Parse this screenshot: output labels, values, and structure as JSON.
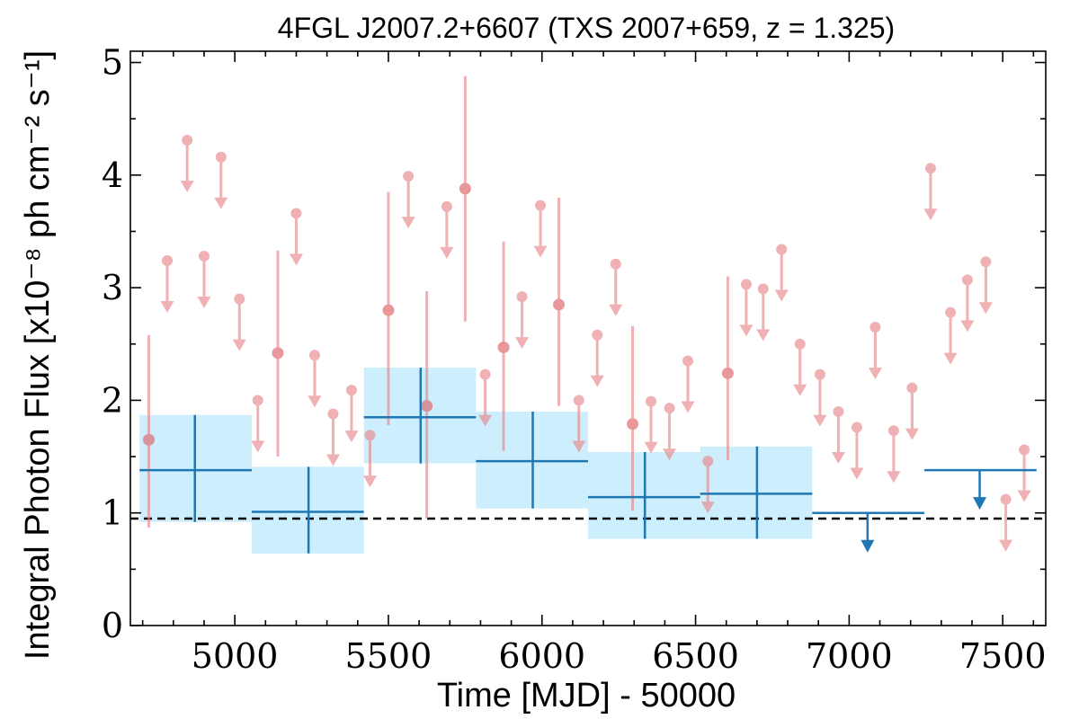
{
  "chart_data": {
    "type": "scatter",
    "title": "4FGL J2007.2+6607 (TXS 2007+659, z = 1.325)",
    "xlabel": "Time [MJD] - 50000",
    "ylabel": "Integral Photon Flux [x10⁻⁸ ph cm⁻² s⁻¹]",
    "xlim": [
      4660,
      7640
    ],
    "ylim": [
      0,
      5.1
    ],
    "xticks": [
      5000,
      5500,
      6000,
      6500,
      7000,
      7500
    ],
    "xtick_labels": [
      "5000",
      "5500",
      "6000",
      "6500",
      "7000",
      "7500"
    ],
    "yticks": [
      0,
      1,
      2,
      3,
      4,
      5
    ],
    "ytick_labels": [
      "0",
      "1",
      "2",
      "3",
      "4",
      "5"
    ],
    "grid": false,
    "reference_line": {
      "y": 0.95,
      "style": "dashed",
      "color": "#000000"
    },
    "colors": {
      "short_bins": "#e8888c",
      "long_bins": "#1f77b4",
      "long_band": "#cdeefc"
    },
    "series": [
      {
        "style": "short-bin detections",
        "points": [
          {
            "x": 4720,
            "y": 1.65,
            "ylo": 0.87,
            "yhi": 2.58
          },
          {
            "x": 5140,
            "y": 2.42,
            "ylo": 1.5,
            "yhi": 3.33
          },
          {
            "x": 5500,
            "y": 2.8,
            "ylo": 1.78,
            "yhi": 3.85
          },
          {
            "x": 5625,
            "y": 1.95,
            "ylo": 0.95,
            "yhi": 2.97
          },
          {
            "x": 5750,
            "y": 3.88,
            "ylo": 2.7,
            "yhi": 4.88
          },
          {
            "x": 5875,
            "y": 2.47,
            "ylo": 1.55,
            "yhi": 3.41
          },
          {
            "x": 6055,
            "y": 2.85,
            "ylo": 1.95,
            "yhi": 3.8
          },
          {
            "x": 6295,
            "y": 1.79,
            "ylo": 1.02,
            "yhi": 2.66
          },
          {
            "x": 6605,
            "y": 2.24,
            "ylo": 1.47,
            "yhi": 3.1
          }
        ]
      },
      {
        "style": "short-bin upper limits",
        "points": [
          {
            "x": 4780,
            "y": 3.24
          },
          {
            "x": 4845,
            "y": 4.31
          },
          {
            "x": 4900,
            "y": 3.28
          },
          {
            "x": 4955,
            "y": 4.16
          },
          {
            "x": 5015,
            "y": 2.9
          },
          {
            "x": 5075,
            "y": 2.0
          },
          {
            "x": 5200,
            "y": 3.66
          },
          {
            "x": 5260,
            "y": 2.4
          },
          {
            "x": 5320,
            "y": 1.88
          },
          {
            "x": 5380,
            "y": 2.09
          },
          {
            "x": 5440,
            "y": 1.69
          },
          {
            "x": 5565,
            "y": 3.99
          },
          {
            "x": 5690,
            "y": 3.72
          },
          {
            "x": 5815,
            "y": 2.23
          },
          {
            "x": 5935,
            "y": 2.92
          },
          {
            "x": 5995,
            "y": 3.73
          },
          {
            "x": 6120,
            "y": 2.0
          },
          {
            "x": 6180,
            "y": 2.58
          },
          {
            "x": 6240,
            "y": 3.21
          },
          {
            "x": 6355,
            "y": 1.99
          },
          {
            "x": 6415,
            "y": 1.93
          },
          {
            "x": 6475,
            "y": 2.35
          },
          {
            "x": 6540,
            "y": 1.46
          },
          {
            "x": 6665,
            "y": 3.03
          },
          {
            "x": 6720,
            "y": 2.99
          },
          {
            "x": 6780,
            "y": 3.34
          },
          {
            "x": 6840,
            "y": 2.5
          },
          {
            "x": 6905,
            "y": 2.23
          },
          {
            "x": 6965,
            "y": 1.9
          },
          {
            "x": 7025,
            "y": 1.76
          },
          {
            "x": 7085,
            "y": 2.65
          },
          {
            "x": 7145,
            "y": 1.73
          },
          {
            "x": 7205,
            "y": 2.11
          },
          {
            "x": 7265,
            "y": 4.06
          },
          {
            "x": 7330,
            "y": 2.78
          },
          {
            "x": 7385,
            "y": 3.07
          },
          {
            "x": 7445,
            "y": 3.23
          },
          {
            "x": 7510,
            "y": 1.12
          },
          {
            "x": 7570,
            "y": 1.56
          }
        ]
      },
      {
        "style": "long-bin detections",
        "bins": [
          {
            "x0": 4690,
            "x1": 5055,
            "xc": 4870,
            "y": 1.38,
            "ylo": 0.92,
            "yhi": 1.87
          },
          {
            "x0": 5055,
            "x1": 5420,
            "xc": 5240,
            "y": 1.01,
            "ylo": 0.64,
            "yhi": 1.41
          },
          {
            "x0": 5420,
            "x1": 5785,
            "xc": 5605,
            "y": 1.85,
            "ylo": 1.44,
            "yhi": 2.29
          },
          {
            "x0": 5785,
            "x1": 6150,
            "xc": 5970,
            "y": 1.46,
            "ylo": 1.04,
            "yhi": 1.9
          },
          {
            "x0": 6150,
            "x1": 6515,
            "xc": 6335,
            "y": 1.14,
            "ylo": 0.77,
            "yhi": 1.54
          },
          {
            "x0": 6515,
            "x1": 6880,
            "xc": 6700,
            "y": 1.17,
            "ylo": 0.77,
            "yhi": 1.59
          }
        ]
      },
      {
        "style": "long-bin upper limits",
        "bins": [
          {
            "x0": 6880,
            "x1": 7245,
            "xc": 7060,
            "y": 1.0
          },
          {
            "x0": 7245,
            "x1": 7610,
            "xc": 7425,
            "y": 1.38
          }
        ]
      }
    ]
  }
}
